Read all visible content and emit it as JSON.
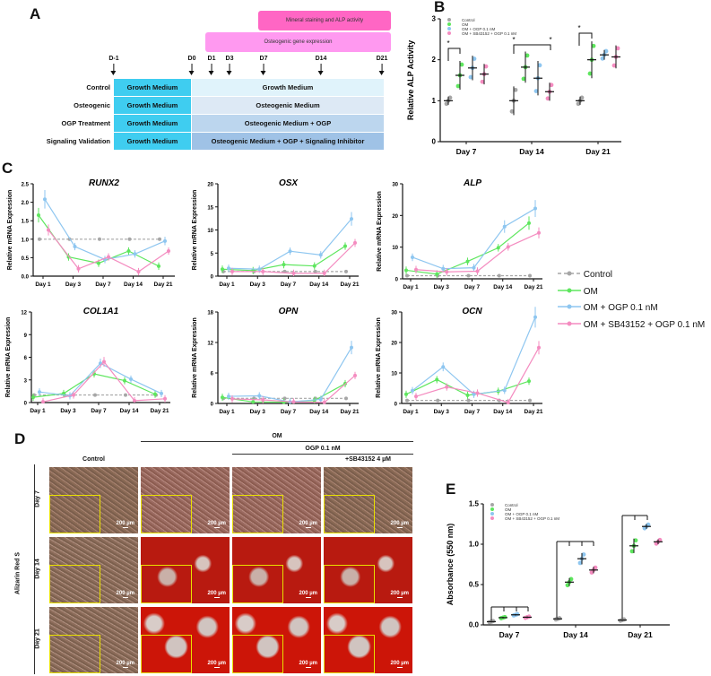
{
  "panel_labels": {
    "a": "A",
    "b": "B",
    "c": "C",
    "d": "D",
    "e": "E"
  },
  "panel_a": {
    "bars": {
      "mineral": "Mineral staining and ALP activity",
      "gene": "Osteogenic gene expression"
    },
    "days": [
      "D-1",
      "D0",
      "D1",
      "D3",
      "D7",
      "D14",
      "D21"
    ],
    "rows": [
      {
        "label": "Control",
        "pre": "Growth Medium",
        "treatment": "Growth Medium"
      },
      {
        "label": "Osteogenic",
        "pre": "Growth Medium",
        "treatment": "Osteogenic Medium"
      },
      {
        "label": "OGP Treatment",
        "pre": "Growth Medium",
        "treatment": "Osteogenic Medium + OGP"
      },
      {
        "label": "Signaling Validation",
        "pre": "Growth Medium",
        "treatment": "Osteogenic Medium + OGP + Signaling Inhibitor"
      }
    ],
    "colors": {
      "mineral": "#ff66c4",
      "gene": "#ff99f0",
      "pre": "#3fcdf0",
      "rows": [
        "#e0f3fb",
        "#dde9f5",
        "#bcd6ee",
        "#9fc2e6"
      ]
    }
  },
  "colors": {
    "Control": "#a6a6a6",
    "OM": "#5ee65e",
    "OGP": "#8ec6f0",
    "SB": "#f48cc0"
  },
  "legend": [
    "Control",
    "OM",
    "OM + OGP 0.1 nM",
    "OM + SB43152 + OGP 0.1 nM"
  ],
  "chart_data": [
    {
      "id": "B",
      "type": "scatter",
      "title": "",
      "ylabel": "Relative ALP Activity",
      "ylim": [
        0,
        3
      ],
      "yticks": [
        0,
        1,
        2,
        3
      ],
      "categories": [
        "Day 7",
        "Day 14",
        "Day 21"
      ],
      "series": [
        {
          "name": "Control",
          "mean": [
            1.0,
            1.0,
            1.0
          ],
          "sd": [
            0.1,
            0.35,
            0.1
          ]
        },
        {
          "name": "OM",
          "mean": [
            1.62,
            1.82,
            2.0
          ],
          "sd": [
            0.35,
            0.38,
            0.45
          ]
        },
        {
          "name": "OM + OGP 0.1 nM",
          "mean": [
            1.8,
            1.55,
            2.12
          ],
          "sd": [
            0.3,
            0.42,
            0.12
          ]
        },
        {
          "name": "OM + SB43152 + OGP 0.1 nM",
          "mean": [
            1.65,
            1.22,
            2.07
          ],
          "sd": [
            0.25,
            0.22,
            0.28
          ]
        }
      ],
      "significance": "*"
    },
    {
      "id": "RUNX2",
      "type": "line",
      "title": "RUNX2",
      "ylabel": "Relative mRNA Expression",
      "ylim": [
        0,
        2.5
      ],
      "yticks": [
        "0.0",
        "0.5",
        "1.0",
        "1.5",
        "2.0",
        "2.5"
      ],
      "categories": [
        "Day 1",
        "Day 3",
        "Day 7",
        "Day 14",
        "Day 21"
      ],
      "series": [
        {
          "name": "Control",
          "values": [
            1,
            1,
            1,
            1,
            1
          ]
        },
        {
          "name": "OM",
          "values": [
            1.65,
            0.52,
            0.35,
            0.68,
            0.27
          ]
        },
        {
          "name": "OM + OGP 0.1 nM",
          "values": [
            2.08,
            0.8,
            0.45,
            0.6,
            0.95
          ]
        },
        {
          "name": "OM + SB43152 + OGP 0.1 nM",
          "values": [
            1.25,
            0.2,
            0.52,
            0.12,
            0.68
          ]
        }
      ]
    },
    {
      "id": "OSX",
      "type": "line",
      "title": "OSX",
      "ylabel": "Relative mRNA Expression",
      "ylim": [
        0,
        20
      ],
      "yticks": [
        "0",
        "5",
        "10",
        "15",
        "20"
      ],
      "categories": [
        "Day 1",
        "Day 3",
        "Day 7",
        "Day 14",
        "Day 21"
      ],
      "series": [
        {
          "name": "Control",
          "values": [
            1,
            1,
            1,
            1,
            1
          ]
        },
        {
          "name": "OM",
          "values": [
            1.5,
            1.2,
            2.5,
            2.2,
            6.5
          ]
        },
        {
          "name": "OM + OGP 0.1 nM",
          "values": [
            1.7,
            1.5,
            5.4,
            4.6,
            12.4
          ]
        },
        {
          "name": "OM + SB43152 + OGP 0.1 nM",
          "values": [
            1.0,
            1.0,
            0.6,
            0.6,
            7.2
          ]
        }
      ]
    },
    {
      "id": "ALP",
      "type": "line",
      "title": "ALP",
      "ylabel": "Relative mRNA Expression",
      "ylim": [
        0,
        30
      ],
      "yticks": [
        "0",
        "10",
        "20",
        "30"
      ],
      "categories": [
        "Day 1",
        "Day 3",
        "Day 7",
        "Day 14",
        "Day 21"
      ],
      "series": [
        {
          "name": "Control",
          "values": [
            1,
            1,
            1,
            1,
            1
          ]
        },
        {
          "name": "OM",
          "values": [
            2.7,
            1.5,
            5.5,
            9.8,
            17.6
          ]
        },
        {
          "name": "OM + OGP 0.1 nM",
          "values": [
            6.8,
            3.2,
            3.5,
            16.5,
            22.2
          ]
        },
        {
          "name": "OM + SB43152 + OGP 0.1 nM",
          "values": [
            2.9,
            2.2,
            2.4,
            10.1,
            14.5
          ]
        }
      ]
    },
    {
      "id": "COL1A1",
      "type": "line",
      "title": "COL1A1",
      "ylabel": "Relative mRNA Expression",
      "ylim": [
        0,
        12
      ],
      "yticks": [
        "0",
        "3",
        "6",
        "9",
        "12"
      ],
      "categories": [
        "Day 1",
        "Day 3",
        "Day 7",
        "Day 14",
        "Day 21"
      ],
      "series": [
        {
          "name": "Control",
          "values": [
            1,
            1,
            1,
            1,
            1
          ]
        },
        {
          "name": "OM",
          "values": [
            0.7,
            1.2,
            3.8,
            2.9,
            1.1
          ]
        },
        {
          "name": "OM + OGP 0.1 nM",
          "values": [
            1.4,
            0.9,
            5.2,
            3.1,
            1.2
          ]
        },
        {
          "name": "OM + SB43152 + OGP 0.1 nM",
          "values": [
            0.1,
            1.0,
            5.4,
            0.25,
            0.5
          ]
        }
      ]
    },
    {
      "id": "OPN",
      "type": "line",
      "title": "OPN",
      "ylabel": "Relative mRNA Expression",
      "ylim": [
        0,
        18
      ],
      "yticks": [
        "0",
        "6",
        "12",
        "18"
      ],
      "categories": [
        "Day 1",
        "Day 3",
        "Day 7",
        "Day 14",
        "Day 21"
      ],
      "series": [
        {
          "name": "Control",
          "values": [
            1,
            1,
            1,
            1,
            1
          ]
        },
        {
          "name": "OM",
          "values": [
            1.2,
            0.3,
            0.25,
            0.6,
            3.9
          ]
        },
        {
          "name": "OM + OGP 0.1 nM",
          "values": [
            1.4,
            1.5,
            0.3,
            0.8,
            11
          ]
        },
        {
          "name": "OM + SB43152 + OGP 0.1 nM",
          "values": [
            0.9,
            0.7,
            0.3,
            0.2,
            5.5
          ]
        }
      ]
    },
    {
      "id": "OCN",
      "type": "line",
      "title": "OCN",
      "ylabel": "Relative mRNA Expression",
      "ylim": [
        0,
        30
      ],
      "yticks": [
        "0",
        "10",
        "20",
        "30"
      ],
      "categories": [
        "Day 1",
        "Day 3",
        "Day 7",
        "Day 14",
        "Day 21"
      ],
      "series": [
        {
          "name": "Control",
          "values": [
            1,
            1,
            1,
            1,
            1
          ]
        },
        {
          "name": "OM",
          "values": [
            3,
            7.8,
            2.7,
            4,
            7.3
          ]
        },
        {
          "name": "OM + OGP 0.1 nM",
          "values": [
            4.2,
            12,
            3,
            4.3,
            28.3
          ]
        },
        {
          "name": "OM + SB43152 + OGP 0.1 nM",
          "values": [
            2.3,
            5.4,
            3.4,
            0.3,
            18.3
          ]
        }
      ]
    },
    {
      "id": "E",
      "type": "scatter",
      "title": "",
      "ylabel": "Absorbance (550 nm)",
      "ylim": [
        0,
        1.5
      ],
      "yticks": [
        "0.0",
        "0.5",
        "1.0",
        "1.5"
      ],
      "categories": [
        "Day 7",
        "Day 14",
        "Day 21"
      ],
      "series": [
        {
          "name": "Control",
          "mean": [
            0.04,
            0.075,
            0.06
          ],
          "sd": [
            0.01,
            0.01,
            0.01
          ]
        },
        {
          "name": "OM",
          "mean": [
            0.09,
            0.53,
            0.98
          ],
          "sd": [
            0.01,
            0.05,
            0.09
          ]
        },
        {
          "name": "OM + OGP 0.1 nM",
          "mean": [
            0.125,
            0.82,
            1.22
          ],
          "sd": [
            0.01,
            0.07,
            0.03
          ]
        },
        {
          "name": "OM + SB43152 + OGP 0.1 nM",
          "mean": [
            0.095,
            0.68,
            1.03
          ],
          "sd": [
            0.01,
            0.04,
            0.03
          ]
        }
      ]
    }
  ],
  "panel_d": {
    "columns": [
      "Control",
      "OM",
      "OGP 0.1 nM",
      "+SB43152 4 µM"
    ],
    "rows": [
      "Day 7",
      "Day 14",
      "Day 21"
    ],
    "stain": "Alizarin Red S",
    "scale_bar": "200 µm"
  }
}
